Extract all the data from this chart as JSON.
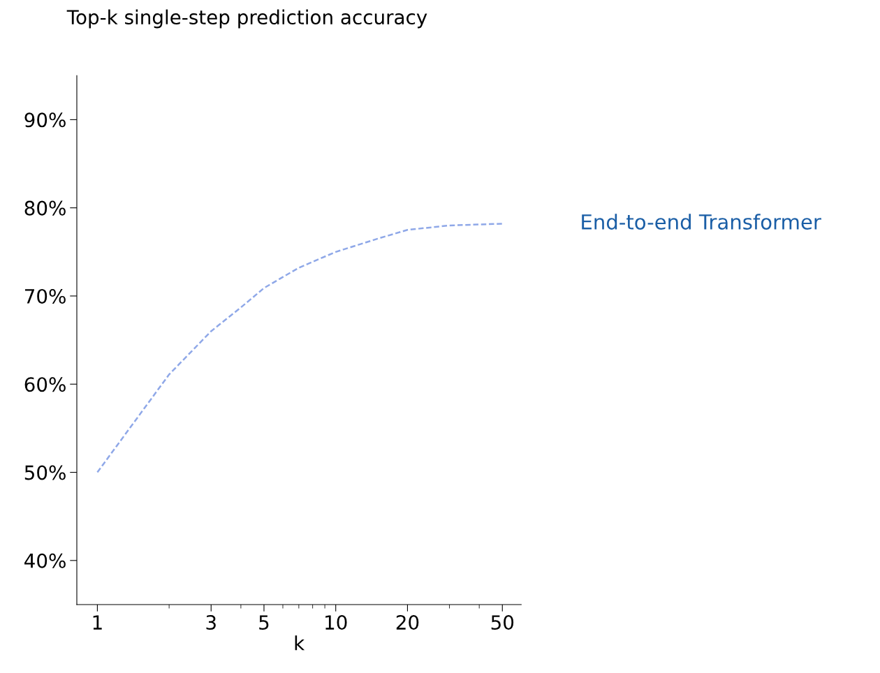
{
  "chart_data": {
    "type": "line",
    "title": "Top-k single-step prediction accuracy",
    "xlabel": "k",
    "log": "x",
    "x": [
      1,
      2,
      3,
      4,
      5,
      7,
      10,
      15,
      20,
      30,
      50
    ],
    "series": [
      {
        "name": "End-to-end Transformer",
        "color": "#8fa8e8",
        "values": [
          50,
          61.1,
          66,
          68.7,
          70.9,
          73.2,
          75,
          76.5,
          77.5,
          78,
          78.2
        ]
      }
    ],
    "line_style": "dashed",
    "marker": "none",
    "grid": false,
    "legend": false,
    "xlim": [
      0.82,
      60
    ],
    "xticks": [
      1,
      {
        "value": 2,
        "label": null
      },
      3,
      {
        "value": 4,
        "label": null
      },
      5,
      {
        "value": 6,
        "label": null
      },
      {
        "value": 7,
        "label": null
      },
      {
        "value": 8,
        "label": null
      },
      {
        "value": 9,
        "label": null
      },
      10,
      20,
      {
        "value": 30,
        "label": null
      },
      {
        "value": 40,
        "label": null
      },
      50
    ],
    "ylim": [
      35,
      95
    ],
    "yticks": [
      {
        "value": 40,
        "label": "40%"
      },
      {
        "value": 50,
        "label": "50%"
      },
      {
        "value": 60,
        "label": "60%"
      },
      {
        "value": 70,
        "label": "70%"
      },
      {
        "value": 80,
        "label": "80%"
      },
      {
        "value": 90,
        "label": "90%"
      }
    ]
  }
}
